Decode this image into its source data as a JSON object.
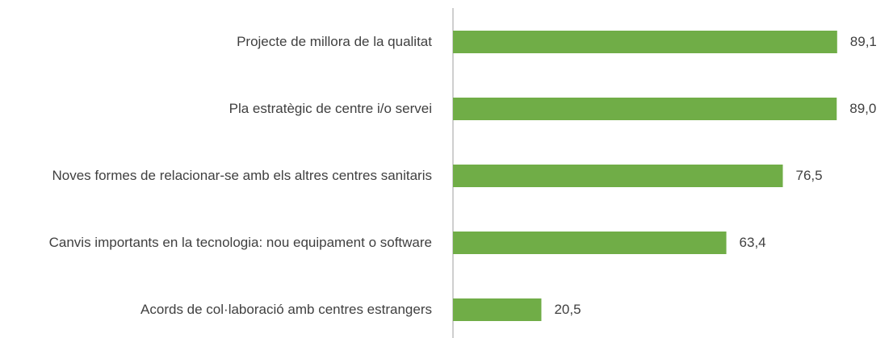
{
  "chart_data": {
    "type": "bar",
    "orientation": "horizontal",
    "categories": [
      "Projecte de millora de la qualitat",
      "Pla estratègic de centre i/o servei",
      "Noves formes de relacionar-se amb els altres centres sanitaris",
      "Canvis importants en la tecnologia: nou equipament o software",
      "Acords de col·laboració amb centres estrangers"
    ],
    "values": [
      89.1,
      89.0,
      76.5,
      63.4,
      20.5
    ],
    "value_labels": [
      "89,1",
      "89,0",
      "76,5",
      "63,4",
      "20,5"
    ],
    "color": "#70ad47",
    "xlim": [
      0,
      100
    ]
  }
}
